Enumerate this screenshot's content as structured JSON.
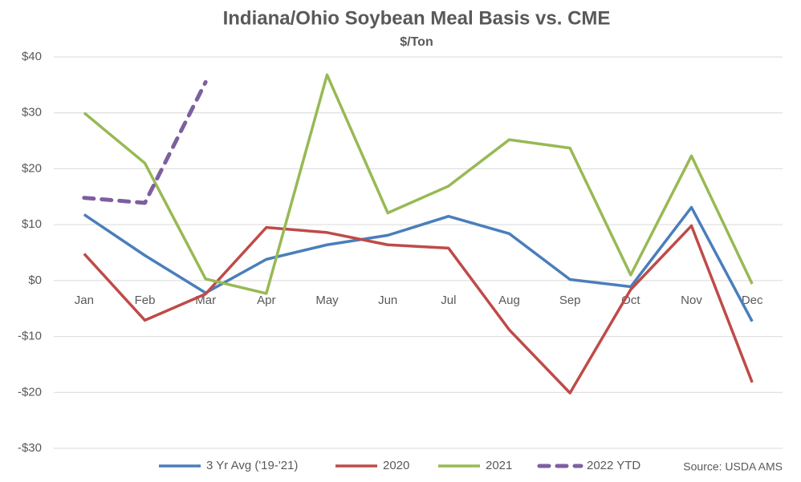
{
  "chart_data": {
    "type": "line",
    "title": "Indiana/Ohio Soybean Meal Basis vs. CME",
    "subtitle": "$/Ton",
    "source": "Source: USDA AMS",
    "categories": [
      "Jan",
      "Feb",
      "Mar",
      "Apr",
      "May",
      "Jun",
      "Jul",
      "Aug",
      "Sep",
      "Oct",
      "Nov",
      "Dec"
    ],
    "series": [
      {
        "name": "3 Yr Avg ('19-'21)",
        "color": "#4a7ebb",
        "dashed": false,
        "values": [
          11.8,
          4.5,
          -2.2,
          3.8,
          6.4,
          8.1,
          11.5,
          8.4,
          0.2,
          -1.1,
          13.1,
          -7.3
        ]
      },
      {
        "name": "2020",
        "color": "#be4b48",
        "dashed": false,
        "values": [
          4.8,
          -7.1,
          -2.4,
          9.5,
          8.6,
          6.4,
          5.8,
          -8.8,
          -20.1,
          -1.6,
          9.8,
          -18.2
        ]
      },
      {
        "name": "2021",
        "color": "#98b954",
        "dashed": false,
        "values": [
          30,
          21,
          0.3,
          -2.3,
          36.8,
          12.1,
          16.9,
          25.2,
          23.7,
          1,
          22.3,
          -0.6
        ]
      },
      {
        "name": "2022 YTD",
        "color": "#7d5fa0",
        "dashed": true,
        "values": [
          14.8,
          13.9,
          35.5,
          null,
          null,
          null,
          null,
          null,
          null,
          null,
          null,
          null
        ]
      }
    ],
    "ylim": [
      -30,
      40
    ],
    "yticks": [
      {
        "value": -30,
        "label": "-$30"
      },
      {
        "value": -20,
        "label": "-$20"
      },
      {
        "value": -10,
        "label": "-$10"
      },
      {
        "value": 0,
        "label": "$0"
      },
      {
        "value": 10,
        "label": "$10"
      },
      {
        "value": 20,
        "label": "$20"
      },
      {
        "value": 30,
        "label": "$30"
      },
      {
        "value": 40,
        "label": "$40"
      }
    ],
    "grid": true,
    "legend": "bottom"
  }
}
